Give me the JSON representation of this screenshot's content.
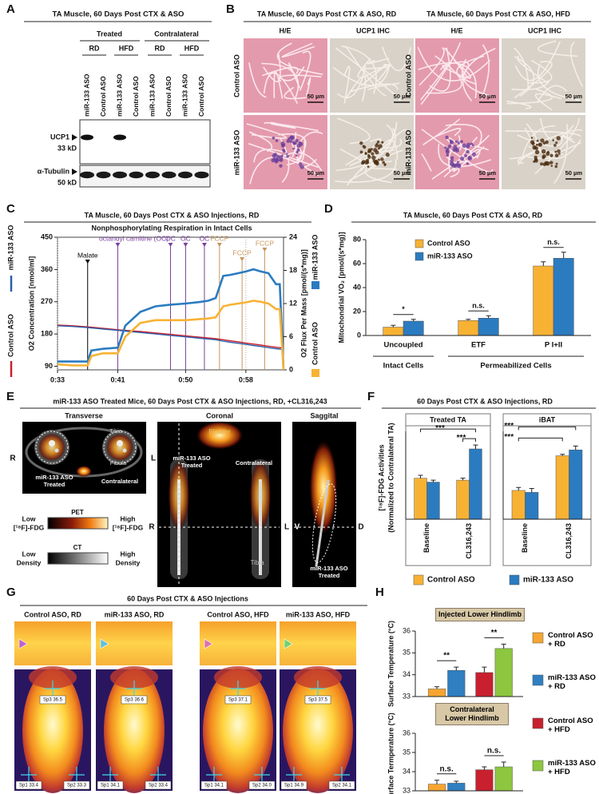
{
  "panels": {
    "A": {
      "letter": "A",
      "title": "TA Muscle, 60 Days Post CTX & ASO",
      "groups": [
        "Treated",
        "Contralateral"
      ],
      "diets": [
        "RD",
        "HFD",
        "RD",
        "HFD"
      ],
      "lanes": [
        "miR-133 ASO",
        "Control ASO",
        "miR-133 ASO",
        "Control ASO",
        "miR-133 ASO",
        "Control ASO",
        "miR-133 ASO",
        "Control ASO"
      ],
      "rows": [
        "UCP1",
        "33 kD",
        "α-Tubulin",
        "50 kD"
      ]
    },
    "B": {
      "letter": "B",
      "scale": "50 µm",
      "blocks": [
        {
          "title": "TA Muscle, 60 Days Post CTX & ASO, RD",
          "columns": [
            "H/E",
            "UCP1 IHC"
          ],
          "rows": [
            "Control ASO",
            "miR-133 ASO"
          ]
        },
        {
          "title": "TA Muscle, 60 Days Post CTX & ASO, HFD",
          "columns": [
            "H/E",
            "UCP1 IHC"
          ],
          "rows": [
            "Control ASO",
            "miR-133 ASO"
          ]
        }
      ]
    },
    "C": {
      "letter": "C",
      "title": "TA Muscle, 60 Days Post CTX & ASO Injections, RD"
    },
    "D": {
      "letter": "D"
    },
    "E": {
      "letter": "E",
      "title": "miR-133 ASO Treated Mice, 60 Days Post CTX & ASO Injections, RD, +CL316,243",
      "views": [
        "Transverse",
        "Coronal",
        "Saggital"
      ],
      "transverse": [
        "R",
        "L",
        "Tibia",
        "Fibula",
        "miR-133 ASO",
        "Treated",
        "Contralateral"
      ],
      "coronal": [
        "Bladder",
        "R",
        "L",
        "miR-133 ASO",
        "Treated",
        "Contralateral",
        "Tibia"
      ],
      "saggital": [
        "V",
        "D",
        "miR-133 ASO",
        "Treated"
      ],
      "legend": [
        "PET",
        "Low",
        "[¹⁸F]-FDG",
        "High",
        "[¹⁸F]-FDG",
        "CT",
        "Low",
        "Density",
        "High",
        "Density"
      ]
    },
    "F": {
      "letter": "F",
      "title": "60 Days Post CTX & ASO Injections, RD",
      "ylabel": [
        "[¹⁸F]-FDG Activities",
        "(Normalized to Contralateral TA)"
      ]
    },
    "G": {
      "letter": "G",
      "title": "60 Days Post CTX & ASO Injections",
      "columns": [
        "Control ASO, RD",
        "miR-133 ASO, RD",
        "Control ASO, HFD",
        "miR-133 ASO, HFD"
      ],
      "spots": [
        [
          "Sp3 36.5",
          "Sp1 33.4",
          "Sp2 33.3"
        ],
        [
          "Sp3 36.6",
          "Sp1 34.1",
          "Sp2 33.4"
        ],
        [
          "Sp3 37.1",
          "Sp1 34.1",
          "Sp2 34.0"
        ],
        [
          "Sp3 37.5",
          "Sp1 34.9",
          "Sp2 34.1"
        ]
      ]
    },
    "H": {
      "letter": "H"
    }
  },
  "chart_data": [
    {
      "type": "line",
      "title": "Nonphosphorylating Respiration in Intact Cells",
      "ylabel": "O2 Concentration [nmol/ml]",
      "y2label": "O2 Flux Per Mass [pmol/(s*mg)]",
      "x": [
        33,
        35,
        37,
        37.5,
        39,
        41,
        42,
        44,
        46,
        48,
        50,
        52,
        53,
        54,
        55,
        56,
        57,
        58,
        59,
        60,
        61,
        62,
        62.5,
        63
      ],
      "xlim": [
        33,
        63
      ],
      "xticks": [
        {
          "value": 33,
          "label": "0:33"
        },
        {
          "value": 41,
          "label": "0:41"
        },
        {
          "value": 50,
          "label": "0:50"
        },
        {
          "value": 58,
          "label": "0:58"
        }
      ],
      "ylim": [
        80,
        450
      ],
      "yticks": [
        90,
        180,
        270,
        360,
        450
      ],
      "y2lim": [
        0,
        24
      ],
      "y2ticks": [
        0,
        6,
        12,
        18,
        24
      ],
      "grid": true,
      "series": [
        {
          "name": "Control ASO",
          "color": "#c9202f",
          "axis": "y",
          "values": [
            205,
            203,
            200,
            199,
            196,
            192,
            190,
            187,
            183,
            179,
            175,
            171,
            169,
            167,
            164,
            161,
            158,
            155,
            152,
            149,
            146,
            143,
            142,
            141
          ]
        },
        {
          "name": "miR-133 ASO",
          "color": "#2b5ea8",
          "axis": "y",
          "values": [
            203,
            201,
            198,
            197,
            194,
            190,
            188,
            184,
            180,
            176,
            172,
            168,
            166,
            164,
            160,
            157,
            154,
            151,
            148,
            145,
            142,
            139,
            138,
            137
          ]
        },
        {
          "name": "miR-133 ASO",
          "color": "#2b7bc0",
          "axis": "y2",
          "values": [
            1.5,
            1.5,
            1.5,
            3.5,
            3.8,
            4,
            8,
            10.5,
            11.5,
            11.8,
            12,
            12.3,
            12.5,
            13,
            17,
            17.2,
            17.5,
            17.8,
            18.2,
            17.8,
            17.5,
            15.5,
            15.5,
            0
          ]
        },
        {
          "name": "Control ASO",
          "color": "#f7b234",
          "axis": "y2",
          "values": [
            1,
            0.8,
            0.8,
            2.5,
            3,
            3,
            6,
            8.5,
            9,
            9,
            9,
            9.2,
            9.3,
            9.5,
            11.5,
            11.8,
            12,
            12.2,
            12.5,
            12.3,
            12,
            11,
            11,
            0
          ]
        }
      ],
      "annotations": [
        {
          "label": "Malate",
          "x": 37,
          "color": "#000000"
        },
        {
          "label": "octanoyl carnitine (OC)",
          "x": 41,
          "color": "#7b3fa0"
        },
        {
          "label": "OC",
          "x": 48,
          "color": "#7b3fa0"
        },
        {
          "label": "OC",
          "x": 50,
          "color": "#7b3fa0"
        },
        {
          "label": "OC",
          "x": 52.5,
          "color": "#7b3fa0"
        },
        {
          "label": "FCCP",
          "x": 54.5,
          "color": "#c8955a"
        },
        {
          "label": "FCCP",
          "x": 57.5,
          "color": "#c8955a"
        },
        {
          "label": "FCCP",
          "x": 60.5,
          "color": "#c8955a"
        }
      ]
    },
    {
      "type": "bar",
      "title": "TA Muscle, 60 Days Post CTX & ASO, RD",
      "ylabel": "Mitochondrial VO₂ [pmol/(s*mg)]",
      "categories": [
        "Uncoupled",
        "ETF",
        "P I+II"
      ],
      "groups": [
        "Intact Cells",
        "Permeabilized Cells"
      ],
      "ylim": [
        0,
        80
      ],
      "yticks": [
        0,
        20,
        40,
        60,
        80
      ],
      "series": [
        {
          "name": "Control ASO",
          "color": "#f7b234",
          "values": [
            7,
            12.5,
            58
          ],
          "errors": [
            1.5,
            1,
            3.5
          ]
        },
        {
          "name": "miR-133 ASO",
          "color": "#2b7bc0",
          "values": [
            12,
            14.5,
            64.5
          ],
          "errors": [
            1.5,
            2,
            5
          ]
        }
      ],
      "significance": [
        "*",
        "n.s.",
        "n.s."
      ]
    },
    {
      "type": "bar",
      "title": "Treated TA",
      "categories": [
        "Baseline",
        "CL316,243"
      ],
      "ylim": [
        0.6,
        1.5
      ],
      "series": [
        {
          "name": "Control ASO",
          "color": "#f7b234",
          "values": [
            1.02,
            1.0
          ],
          "errors": [
            0.03,
            0.02
          ]
        },
        {
          "name": "miR-133 ASO",
          "color": "#2b7bc0",
          "values": [
            0.98,
            1.32
          ],
          "errors": [
            0.02,
            0.04
          ]
        }
      ],
      "significance": [
        "***",
        "***"
      ]
    },
    {
      "type": "bar",
      "title": "iBAT",
      "categories": [
        "Baseline",
        "CL316,243"
      ],
      "ylim": [
        0,
        9
      ],
      "series": [
        {
          "name": "Control ASO",
          "color": "#f7b234",
          "values": [
            2.95,
            6.5
          ],
          "errors": [
            0.3,
            0.15
          ]
        },
        {
          "name": "miR-133 ASO",
          "color": "#2b7bc0",
          "values": [
            2.75,
            7.1
          ],
          "errors": [
            0.4,
            0.4
          ]
        }
      ],
      "significance": [
        "***",
        "***"
      ]
    },
    {
      "type": "bar",
      "title": "Injected Lower Hindlimb",
      "ylabel": "Surface Temperature (°C)",
      "ylim": [
        33,
        36
      ],
      "yticks": [
        33,
        34,
        35,
        36
      ],
      "series": [
        {
          "name": "Control ASO + RD",
          "color": "#f7a531",
          "values": [
            33.35
          ],
          "errors": [
            0.1
          ]
        },
        {
          "name": "miR-133 ASO + RD",
          "color": "#2f7fc1",
          "values": [
            34.2
          ],
          "errors": [
            0.15
          ]
        },
        {
          "name": "Control ASO + HFD",
          "color": "#c8202e",
          "values": [
            34.1
          ],
          "errors": [
            0.25
          ]
        },
        {
          "name": "miR-133 ASO + HFD",
          "color": "#8dc63f",
          "values": [
            35.2
          ],
          "errors": [
            0.2
          ]
        }
      ],
      "significance": [
        "**",
        "**"
      ]
    },
    {
      "type": "bar",
      "title": "Contralateral Lower Hindlimb",
      "ylabel": "Surface Termperature (°C)",
      "ylim": [
        33,
        36
      ],
      "yticks": [
        33,
        34,
        35,
        36
      ],
      "series": [
        {
          "name": "Control ASO + RD",
          "color": "#f7a531",
          "values": [
            33.35
          ],
          "errors": [
            0.2
          ]
        },
        {
          "name": "miR-133 ASO + RD",
          "color": "#2f7fc1",
          "values": [
            33.4
          ],
          "errors": [
            0.1
          ]
        },
        {
          "name": "Control ASO + HFD",
          "color": "#c8202e",
          "values": [
            34.1
          ],
          "errors": [
            0.15
          ]
        },
        {
          "name": "miR-133 ASO + HFD",
          "color": "#8dc63f",
          "values": [
            34.25
          ],
          "errors": [
            0.25
          ]
        }
      ],
      "significance": [
        "n.s.",
        "n.s."
      ]
    }
  ]
}
